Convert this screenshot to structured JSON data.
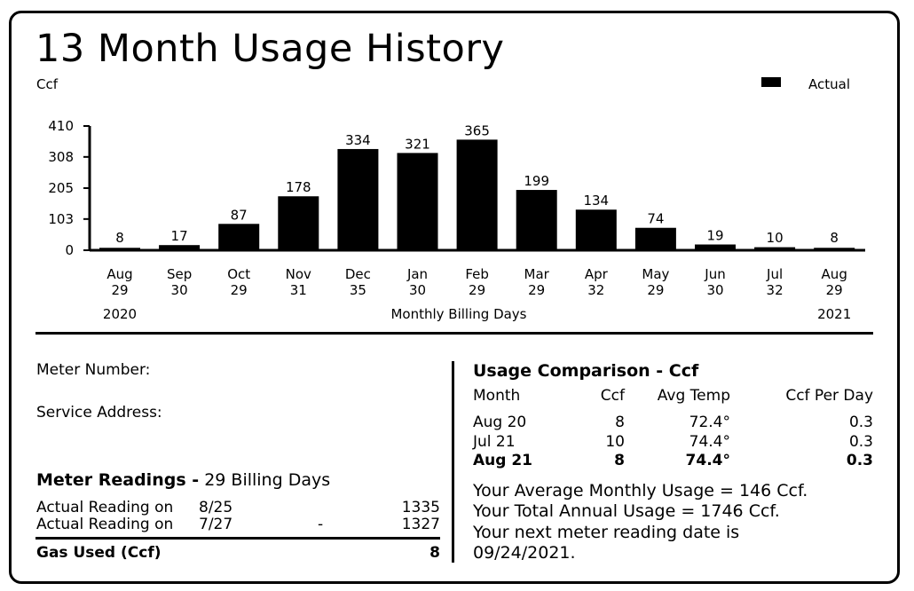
{
  "title": "13 Month Usage History",
  "unit_label": "Ccf",
  "legend": {
    "label": "Actual",
    "color": "#000000"
  },
  "chart_data": {
    "type": "bar",
    "categories": [
      "Aug",
      "Sep",
      "Oct",
      "Nov",
      "Dec",
      "Jan",
      "Feb",
      "Mar",
      "Apr",
      "May",
      "Jun",
      "Jul",
      "Aug"
    ],
    "billing_days": [
      "29",
      "30",
      "29",
      "31",
      "35",
      "30",
      "29",
      "29",
      "32",
      "29",
      "30",
      "32",
      "29"
    ],
    "series": [
      {
        "name": "Actual",
        "values": [
          8,
          17,
          87,
          178,
          334,
          321,
          365,
          199,
          134,
          74,
          19,
          10,
          8
        ]
      }
    ],
    "yticks": [
      0,
      103,
      205,
      308,
      410
    ],
    "ylim": [
      0,
      410
    ],
    "ylabel": "Ccf",
    "xlabel": "Monthly Billing Days",
    "year_start": "2020",
    "year_end": "2021",
    "grid": false,
    "legend_position": "top-right"
  },
  "meter": {
    "number_label": "Meter Number:",
    "address_label": "Service Address:"
  },
  "meter_readings": {
    "title": "Meter Readings -",
    "days_text": "29 Billing Days",
    "rows": [
      {
        "label": "Actual Reading on",
        "date": "8/25",
        "sep": "",
        "value": "1335"
      },
      {
        "label": "Actual Reading on",
        "date": "7/27",
        "sep": "-",
        "value": "1327"
      }
    ],
    "gas_used_label": "Gas Used (Ccf)",
    "gas_used_value": "8"
  },
  "usage_comparison": {
    "title": "Usage Comparison - Ccf",
    "headers": {
      "month": "Month",
      "ccf": "Ccf",
      "temp": "Avg Temp",
      "per_day": "Ccf Per Day"
    },
    "rows": [
      {
        "month": "Aug 20",
        "ccf": "8",
        "temp": "72.4°",
        "per_day": "0.3",
        "bold": false
      },
      {
        "month": "Jul 21",
        "ccf": "10",
        "temp": "74.4°",
        "per_day": "0.3",
        "bold": false
      },
      {
        "month": "Aug 21",
        "ccf": "8",
        "temp": "74.4°",
        "per_day": "0.3",
        "bold": true
      }
    ]
  },
  "summary": {
    "line1": "Your Average Monthly Usage = 146 Ccf.",
    "line2": "Your Total Annual Usage = 1746 Ccf.",
    "line3": "Your next meter reading date is",
    "line4": "09/24/2021."
  }
}
